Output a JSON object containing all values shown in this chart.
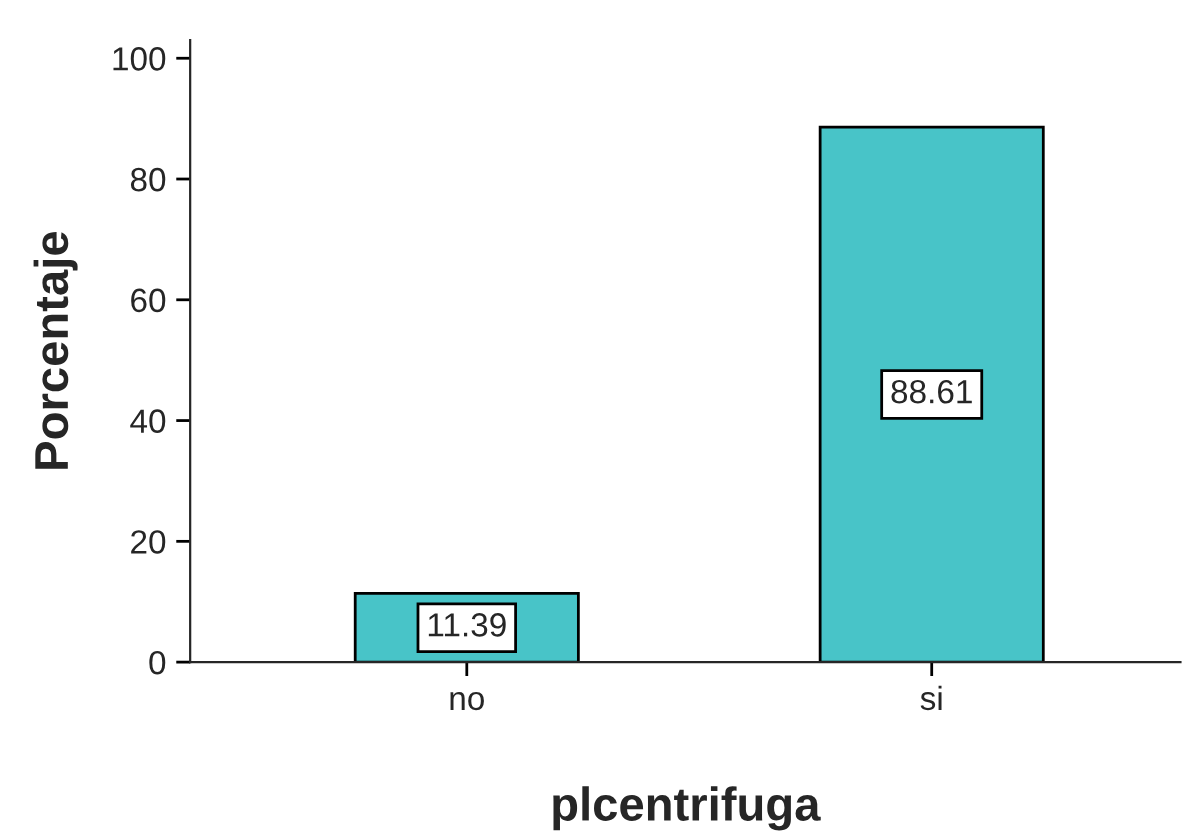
{
  "chart_data": {
    "type": "bar",
    "xlabel": "plcentrifuga",
    "ylabel": "Porcentaje",
    "categories": [
      "no",
      "si"
    ],
    "values": [
      11.39,
      88.61
    ],
    "color": "#48c4c8",
    "ylim": [
      0,
      103
    ],
    "yticks": [
      0,
      20,
      40,
      60,
      80,
      100
    ],
    "data_labels": true,
    "grid": false,
    "legend": false
  }
}
